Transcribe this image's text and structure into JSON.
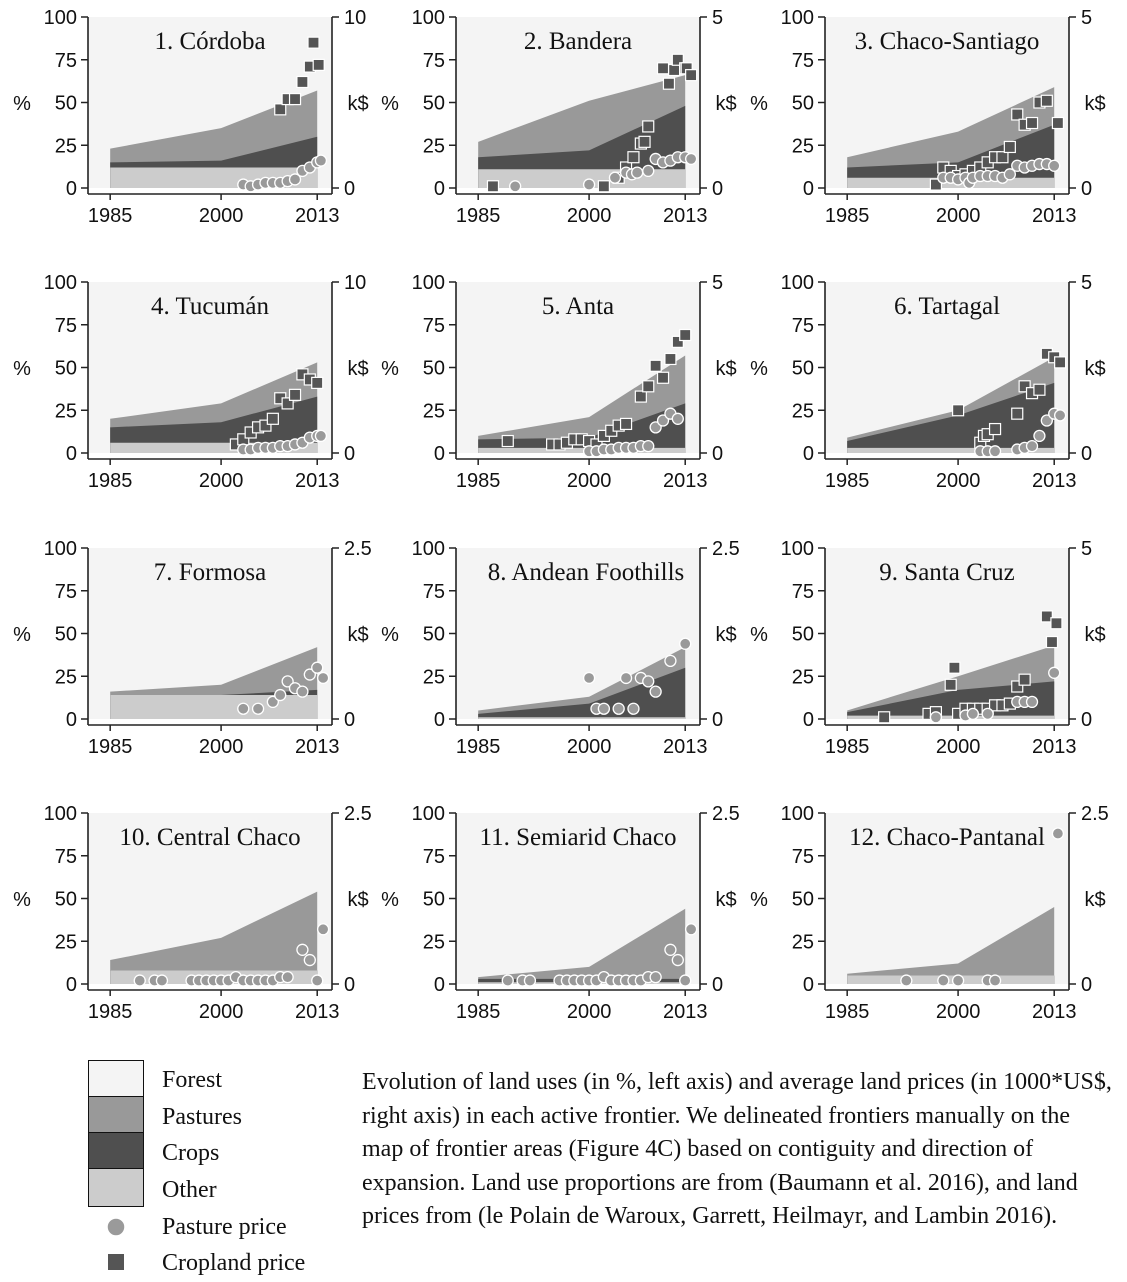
{
  "axes": {
    "left_label": "%",
    "right_label": "k$",
    "left_ticks": [
      "100",
      "75",
      "50",
      "25",
      "0"
    ],
    "x_ticks": [
      "1985",
      "2000",
      "2013"
    ]
  },
  "colors": {
    "forest": "#f4f4f4",
    "pastures": "#999999",
    "crops": "#4f4f4f",
    "other": "#cccccc",
    "pasture_price_marker": "#9a9a9a",
    "cropland_price_marker": "#555555"
  },
  "legend": {
    "forest": "Forest",
    "pastures": "Pastures",
    "crops": "Crops",
    "other": "Other",
    "pasture_price": "Pasture price",
    "cropland_price": "Cropland price"
  },
  "caption": "Evolution of land uses (in %, left axis) and average land prices (in 1000*US$, right axis) in each active frontier. We delineated frontiers manually on the map of frontier areas (Figure 4C) based on contiguity and direction of expansion. Land use proportions are from (Baumann et al. 2016), and land prices from (le Polain de Waroux, Garrett, Heilmayr, and Lambin 2016).",
  "chart_data": [
    {
      "type": "area",
      "title": "1. Córdoba",
      "x": [
        1985,
        2000,
        2013
      ],
      "y_right_max": 10,
      "right_ticks": [
        "10",
        "0"
      ],
      "other": [
        12,
        12,
        12
      ],
      "crops": [
        3,
        4,
        18
      ],
      "pastures": [
        8,
        19,
        27
      ],
      "pasture_price": [
        [
          2003,
          0.2
        ],
        [
          2004,
          0.1
        ],
        [
          2005,
          0.2
        ],
        [
          2006,
          0.3
        ],
        [
          2007,
          0.3
        ],
        [
          2008,
          0.3
        ],
        [
          2009,
          0.4
        ],
        [
          2010,
          0.5
        ],
        [
          2011,
          1.0
        ],
        [
          2012,
          1.2
        ],
        [
          2013,
          1.5
        ],
        [
          2013.5,
          1.6
        ]
      ],
      "cropland_price": [
        [
          2008,
          4.6
        ],
        [
          2009,
          5.2
        ],
        [
          2010,
          5.2
        ],
        [
          2011,
          6.2
        ],
        [
          2012,
          7.1
        ],
        [
          2012.5,
          8.5
        ],
        [
          2013.2,
          7.2
        ]
      ]
    },
    {
      "type": "area",
      "title": "2. Bandera",
      "x": [
        1985,
        2000,
        2013
      ],
      "y_right_max": 5,
      "right_ticks": [
        "5",
        "0"
      ],
      "other": [
        11,
        11,
        11
      ],
      "crops": [
        7,
        11,
        37
      ],
      "pastures": [
        9,
        29,
        18
      ],
      "pasture_price": [
        [
          1990,
          0.05
        ],
        [
          2000,
          0.1
        ],
        [
          2003.5,
          0.3
        ],
        [
          2005,
          0.45
        ],
        [
          2005.8,
          0.4
        ],
        [
          2006.5,
          0.45
        ],
        [
          2008,
          0.5
        ],
        [
          2009,
          0.85
        ],
        [
          2010,
          0.75
        ],
        [
          2011,
          0.8
        ],
        [
          2012,
          0.9
        ],
        [
          2013,
          0.9
        ],
        [
          2013.8,
          0.85
        ]
      ],
      "cropland_price": [
        [
          1987,
          0.05
        ],
        [
          2002,
          0.05
        ],
        [
          2004,
          0.3
        ],
        [
          2005,
          0.6
        ],
        [
          2006,
          0.9
        ],
        [
          2007,
          1.3
        ],
        [
          2007.5,
          1.35
        ],
        [
          2008,
          1.8
        ],
        [
          2010,
          3.5
        ],
        [
          2010.8,
          3.05
        ],
        [
          2011.5,
          3.45
        ],
        [
          2012,
          3.75
        ],
        [
          2013,
          3.5
        ],
        [
          2013.2,
          3.5
        ],
        [
          2013.8,
          3.3
        ]
      ]
    },
    {
      "type": "area",
      "title": "3. Chaco-Santiago",
      "x": [
        1985,
        2000,
        2013
      ],
      "y_right_max": 5,
      "right_ticks": [
        "5",
        "0"
      ],
      "other": [
        6,
        6,
        6
      ],
      "crops": [
        6,
        9,
        31
      ],
      "pastures": [
        6,
        18,
        22
      ],
      "pasture_price": [
        [
          1998,
          0.3
        ],
        [
          1999,
          0.3
        ],
        [
          2000,
          0.25
        ],
        [
          2001,
          0.3
        ],
        [
          2001.5,
          0.15
        ],
        [
          2002,
          0.3
        ],
        [
          2003,
          0.35
        ],
        [
          2004,
          0.35
        ],
        [
          2005,
          0.35
        ],
        [
          2006,
          0.3
        ],
        [
          2007,
          0.4
        ],
        [
          2008,
          0.65
        ],
        [
          2009,
          0.6
        ],
        [
          2010,
          0.65
        ],
        [
          2011,
          0.7
        ],
        [
          2012,
          0.7
        ],
        [
          2013,
          0.65
        ]
      ],
      "cropland_price": [
        [
          1997,
          0.1
        ],
        [
          1998,
          0.6
        ],
        [
          1999,
          0.5
        ],
        [
          2000,
          0.35
        ],
        [
          2001,
          0.4
        ],
        [
          2002,
          0.5
        ],
        [
          2003,
          0.6
        ],
        [
          2004,
          0.75
        ],
        [
          2005,
          0.9
        ],
        [
          2006,
          0.9
        ],
        [
          2007,
          1.2
        ],
        [
          2008,
          2.15
        ],
        [
          2009,
          1.85
        ],
        [
          2010,
          1.9
        ],
        [
          2011,
          2.5
        ],
        [
          2012,
          2.55
        ],
        [
          2013.5,
          1.9
        ]
      ]
    },
    {
      "type": "area",
      "title": "4. Tucumán",
      "x": [
        1985,
        2000,
        2013
      ],
      "y_right_max": 10,
      "right_ticks": [
        "10",
        "0"
      ],
      "other": [
        6,
        6,
        6
      ],
      "crops": [
        9,
        12,
        27
      ],
      "pastures": [
        5,
        11,
        20
      ],
      "pasture_price": [
        [
          2003,
          0.2
        ],
        [
          2004,
          0.2
        ],
        [
          2005,
          0.3
        ],
        [
          2006,
          0.3
        ],
        [
          2007,
          0.3
        ],
        [
          2008,
          0.4
        ],
        [
          2009,
          0.4
        ],
        [
          2010,
          0.5
        ],
        [
          2011,
          0.6
        ],
        [
          2012,
          0.9
        ],
        [
          2013,
          1.0
        ],
        [
          2013.5,
          1.0
        ]
      ],
      "cropland_price": [
        [
          2002,
          0.5
        ],
        [
          2003,
          0.8
        ],
        [
          2004,
          1.2
        ],
        [
          2005,
          1.5
        ],
        [
          2006,
          1.6
        ],
        [
          2007,
          2.0
        ],
        [
          2008,
          3.2
        ],
        [
          2009,
          2.9
        ],
        [
          2010,
          3.4
        ],
        [
          2011,
          4.6
        ],
        [
          2012,
          4.3
        ],
        [
          2013,
          4.1
        ]
      ]
    },
    {
      "type": "area",
      "title": "5. Anta",
      "x": [
        1985,
        2000,
        2013
      ],
      "y_right_max": 5,
      "right_ticks": [
        "5",
        "0"
      ],
      "other": [
        3,
        3,
        3
      ],
      "crops": [
        5,
        6,
        26
      ],
      "pastures": [
        2,
        12,
        28
      ],
      "pasture_price": [
        [
          2000,
          0.05
        ],
        [
          2001,
          0.05
        ],
        [
          2002,
          0.1
        ],
        [
          2003,
          0.1
        ],
        [
          2004,
          0.15
        ],
        [
          2005,
          0.15
        ],
        [
          2006,
          0.15
        ],
        [
          2007,
          0.2
        ],
        [
          2008,
          0.2
        ],
        [
          2009,
          0.75
        ],
        [
          2010,
          0.95
        ],
        [
          2011,
          1.15
        ],
        [
          2012,
          1.0
        ]
      ],
      "cropland_price": [
        [
          1989,
          0.35
        ],
        [
          1995,
          0.25
        ],
        [
          1996,
          0.25
        ],
        [
          1997,
          0.3
        ],
        [
          1998,
          0.4
        ],
        [
          1999,
          0.4
        ],
        [
          2000,
          0.35
        ],
        [
          2001,
          0.25
        ],
        [
          2002,
          0.5
        ],
        [
          2003,
          0.65
        ],
        [
          2004,
          0.8
        ],
        [
          2005,
          0.85
        ],
        [
          2007,
          1.65
        ],
        [
          2008,
          1.95
        ],
        [
          2009,
          2.55
        ],
        [
          2010,
          2.2
        ],
        [
          2011,
          2.75
        ],
        [
          2012,
          3.25
        ],
        [
          2013,
          3.45
        ]
      ]
    },
    {
      "type": "area",
      "title": "6. Tartagal",
      "x": [
        1985,
        2000,
        2013
      ],
      "y_right_max": 5,
      "right_ticks": [
        "5",
        "0"
      ],
      "other": [
        3,
        3,
        3
      ],
      "crops": [
        4,
        19,
        38
      ],
      "pastures": [
        2,
        3,
        15
      ],
      "pasture_price": [
        [
          2003,
          0.05
        ],
        [
          2004,
          0.05
        ],
        [
          2005,
          0.05
        ],
        [
          2008,
          0.1
        ],
        [
          2009,
          0.15
        ],
        [
          2010,
          0.2
        ],
        [
          2011,
          0.5
        ],
        [
          2012,
          0.95
        ],
        [
          2013,
          1.15
        ],
        [
          2013.8,
          1.1
        ]
      ],
      "cropland_price": [
        [
          2000,
          1.25
        ],
        [
          2003,
          0.3
        ],
        [
          2003.5,
          0.5
        ],
        [
          2004,
          0.55
        ],
        [
          2005,
          0.7
        ],
        [
          2008,
          1.15
        ],
        [
          2009,
          1.95
        ],
        [
          2010,
          1.75
        ],
        [
          2011,
          1.85
        ],
        [
          2012,
          2.9
        ],
        [
          2013,
          2.8
        ],
        [
          2013.8,
          2.65
        ]
      ]
    },
    {
      "type": "area",
      "title": "7. Formosa",
      "x": [
        1985,
        2000,
        2013
      ],
      "y_right_max": 2.5,
      "right_ticks": [
        "2.5",
        "0"
      ],
      "other": [
        14,
        14,
        14
      ],
      "crops": [
        0,
        0,
        3
      ],
      "pastures": [
        2,
        6,
        25
      ],
      "pasture_price": [
        [
          2003,
          0.15
        ],
        [
          2005,
          0.15
        ],
        [
          2007,
          0.25
        ],
        [
          2008,
          0.35
        ],
        [
          2009,
          0.55
        ],
        [
          2010,
          0.45
        ],
        [
          2011,
          0.4
        ],
        [
          2012,
          0.65
        ],
        [
          2013,
          0.75
        ],
        [
          2013.8,
          0.6
        ]
      ],
      "cropland_price": []
    },
    {
      "type": "area",
      "title": "8. Andean Foothills",
      "x": [
        1985,
        2000,
        2013
      ],
      "y_right_max": 2.5,
      "right_ticks": [
        "2.5",
        "0"
      ],
      "other": [
        1,
        1,
        1
      ],
      "crops": [
        2,
        8,
        29
      ],
      "pastures": [
        2,
        4,
        12
      ],
      "pasture_price": [
        [
          2000,
          0.6
        ],
        [
          2001,
          0.15
        ],
        [
          2002,
          0.15
        ],
        [
          2004,
          0.15
        ],
        [
          2005,
          0.6
        ],
        [
          2006,
          0.15
        ],
        [
          2007,
          0.6
        ],
        [
          2008,
          0.55
        ],
        [
          2009,
          0.4
        ],
        [
          2011,
          0.85
        ],
        [
          2013,
          1.1
        ]
      ],
      "cropland_price": []
    },
    {
      "type": "area",
      "title": "9. Santa Cruz",
      "x": [
        1985,
        2000,
        2013
      ],
      "y_right_max": 5,
      "right_ticks": [
        "5",
        "0"
      ],
      "other": [
        2,
        2,
        2
      ],
      "crops": [
        2,
        15,
        20
      ],
      "pastures": [
        1,
        8,
        21
      ],
      "pasture_price": [
        [
          1997,
          0.05
        ],
        [
          2001,
          0.1
        ],
        [
          2002,
          0.15
        ],
        [
          2004,
          0.15
        ],
        [
          2008,
          0.5
        ],
        [
          2009,
          0.5
        ],
        [
          2010,
          0.5
        ],
        [
          2013,
          1.35
        ]
      ],
      "cropland_price": [
        [
          1990,
          0.05
        ],
        [
          1996,
          0.15
        ],
        [
          1997,
          0.2
        ],
        [
          1999,
          1.0
        ],
        [
          1999.5,
          1.5
        ],
        [
          2000,
          0.15
        ],
        [
          2001,
          0.3
        ],
        [
          2002,
          0.3
        ],
        [
          2003,
          0.3
        ],
        [
          2004,
          0.3
        ],
        [
          2005,
          0.4
        ],
        [
          2006,
          0.4
        ],
        [
          2007,
          0.45
        ],
        [
          2008,
          0.95
        ],
        [
          2009,
          1.15
        ],
        [
          2012,
          3.0
        ],
        [
          2012.7,
          2.25
        ],
        [
          2013.3,
          2.8
        ]
      ]
    },
    {
      "type": "area",
      "title": "10. Central Chaco",
      "x": [
        1985,
        2000,
        2013
      ],
      "y_right_max": 2.5,
      "right_ticks": [
        "2.5",
        "0"
      ],
      "other": [
        8,
        8,
        8
      ],
      "crops": [
        0,
        0,
        0
      ],
      "pastures": [
        6,
        19,
        46
      ],
      "pasture_price": [
        [
          1989,
          0.05
        ],
        [
          1991,
          0.05
        ],
        [
          1992,
          0.05
        ],
        [
          1996,
          0.05
        ],
        [
          1997,
          0.05
        ],
        [
          1998,
          0.05
        ],
        [
          1999,
          0.05
        ],
        [
          2000,
          0.05
        ],
        [
          2001,
          0.05
        ],
        [
          2002,
          0.1
        ],
        [
          2003,
          0.05
        ],
        [
          2004,
          0.05
        ],
        [
          2005,
          0.05
        ],
        [
          2006,
          0.05
        ],
        [
          2007,
          0.05
        ],
        [
          2008,
          0.1
        ],
        [
          2009,
          0.1
        ],
        [
          2011,
          0.5
        ],
        [
          2012,
          0.35
        ],
        [
          2013,
          0.05
        ],
        [
          2013.8,
          0.8
        ]
      ],
      "cropland_price": []
    },
    {
      "type": "area",
      "title": "11. Semiarid Chaco",
      "x": [
        1985,
        2000,
        2013
      ],
      "y_right_max": 2.5,
      "right_ticks": [
        "2.5",
        "0"
      ],
      "other": [
        1,
        1,
        1
      ],
      "crops": [
        2,
        2,
        2
      ],
      "pastures": [
        1,
        7,
        41
      ],
      "pasture_price": [
        [
          1989,
          0.05
        ],
        [
          1991,
          0.05
        ],
        [
          1992,
          0.05
        ],
        [
          1996,
          0.05
        ],
        [
          1997,
          0.05
        ],
        [
          1998,
          0.05
        ],
        [
          1999,
          0.05
        ],
        [
          2000,
          0.05
        ],
        [
          2001,
          0.05
        ],
        [
          2002,
          0.1
        ],
        [
          2003,
          0.05
        ],
        [
          2004,
          0.05
        ],
        [
          2005,
          0.05
        ],
        [
          2006,
          0.05
        ],
        [
          2007,
          0.05
        ],
        [
          2008,
          0.1
        ],
        [
          2009,
          0.1
        ],
        [
          2011,
          0.5
        ],
        [
          2012,
          0.35
        ],
        [
          2013,
          0.05
        ],
        [
          2013.8,
          0.8
        ]
      ],
      "cropland_price": []
    },
    {
      "type": "area",
      "title": "12. Chaco-Pantanal",
      "x": [
        1985,
        2000,
        2013
      ],
      "y_right_max": 2.5,
      "right_ticks": [
        "2.5",
        "0"
      ],
      "other": [
        5,
        5,
        5
      ],
      "crops": [
        0,
        0,
        0
      ],
      "pastures": [
        1,
        7,
        40
      ],
      "pasture_price": [
        [
          1993,
          0.05
        ],
        [
          1998,
          0.05
        ],
        [
          2000,
          0.05
        ],
        [
          2004,
          0.05
        ],
        [
          2005,
          0.05
        ],
        [
          2013.5,
          2.2
        ]
      ],
      "cropland_price": []
    }
  ]
}
